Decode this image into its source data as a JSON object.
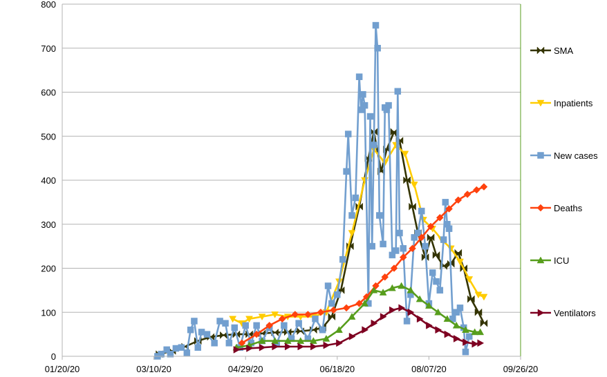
{
  "chart_data": {
    "type": "line",
    "title": "",
    "xlabel": "",
    "ylabel": "",
    "ylim": [
      0,
      800
    ],
    "yticks": [
      0,
      100,
      200,
      300,
      400,
      500,
      600,
      700,
      800
    ],
    "xlim": [
      "01/20/20",
      "09/26/20"
    ],
    "xticks": [
      "01/20/20",
      "03/10/20",
      "04/29/20",
      "06/18/20",
      "08/07/20",
      "09/26/20"
    ],
    "grid": "horizontal",
    "legend_position": "right",
    "series": [
      {
        "name": "SMA",
        "color": "#333300",
        "marker": "bowtie",
        "points": [
          [
            "03/13/20",
            5
          ],
          [
            "03/20/20",
            12
          ],
          [
            "03/27/20",
            22
          ],
          [
            "04/03/20",
            35
          ],
          [
            "04/10/20",
            44
          ],
          [
            "04/17/20",
            48
          ],
          [
            "04/24/20",
            50
          ],
          [
            "05/01/20",
            50
          ],
          [
            "05/08/20",
            52
          ],
          [
            "05/15/20",
            54
          ],
          [
            "05/22/20",
            55
          ],
          [
            "05/29/20",
            57
          ],
          [
            "06/05/20",
            60
          ],
          [
            "06/10/20",
            65
          ],
          [
            "06/15/20",
            90
          ],
          [
            "06/20/20",
            150
          ],
          [
            "06/25/20",
            250
          ],
          [
            "06/30/20",
            340
          ],
          [
            "07/05/20",
            450
          ],
          [
            "07/08/20",
            510
          ],
          [
            "07/12/20",
            420
          ],
          [
            "07/15/20",
            470
          ],
          [
            "07/19/20",
            510
          ],
          [
            "07/22/20",
            490
          ],
          [
            "07/26/20",
            400
          ],
          [
            "07/29/20",
            340
          ],
          [
            "08/01/20",
            280
          ],
          [
            "08/05/20",
            225
          ],
          [
            "08/08/20",
            270
          ],
          [
            "08/11/20",
            230
          ],
          [
            "08/15/20",
            205
          ],
          [
            "08/19/20",
            210
          ],
          [
            "08/23/20",
            235
          ],
          [
            "08/26/20",
            200
          ],
          [
            "08/30/20",
            130
          ],
          [
            "09/03/20",
            100
          ],
          [
            "09/06/20",
            75
          ]
        ]
      },
      {
        "name": "Inpatients",
        "color": "#ffcc00",
        "marker": "triangle-down",
        "points": [
          [
            "04/22/20",
            85
          ],
          [
            "04/27/20",
            75
          ],
          [
            "05/01/20",
            85
          ],
          [
            "05/08/20",
            90
          ],
          [
            "05/15/20",
            95
          ],
          [
            "05/22/20",
            90
          ],
          [
            "05/29/20",
            90
          ],
          [
            "06/05/20",
            90
          ],
          [
            "06/12/20",
            100
          ],
          [
            "06/19/20",
            170
          ],
          [
            "06/26/20",
            280
          ],
          [
            "07/03/20",
            400
          ],
          [
            "07/08/20",
            470
          ],
          [
            "07/14/20",
            440
          ],
          [
            "07/20/20",
            480
          ],
          [
            "07/25/20",
            460
          ],
          [
            "07/30/20",
            390
          ],
          [
            "08/04/20",
            310
          ],
          [
            "08/09/20",
            290
          ],
          [
            "08/14/20",
            265
          ],
          [
            "08/19/20",
            245
          ],
          [
            "08/24/20",
            215
          ],
          [
            "08/29/20",
            175
          ],
          [
            "09/03/20",
            140
          ],
          [
            "09/06/20",
            135
          ]
        ]
      },
      {
        "name": "New cases",
        "color": "#729fcf",
        "marker": "square",
        "points": [
          [
            "03/12/20",
            0
          ],
          [
            "03/14/20",
            5
          ],
          [
            "03/17/20",
            15
          ],
          [
            "03/19/20",
            5
          ],
          [
            "03/22/20",
            18
          ],
          [
            "03/25/20",
            20
          ],
          [
            "03/28/20",
            8
          ],
          [
            "03/30/20",
            60
          ],
          [
            "04/01/20",
            80
          ],
          [
            "04/03/20",
            20
          ],
          [
            "04/05/20",
            55
          ],
          [
            "04/08/20",
            50
          ],
          [
            "04/12/20",
            30
          ],
          [
            "04/15/20",
            80
          ],
          [
            "04/18/20",
            75
          ],
          [
            "04/20/20",
            30
          ],
          [
            "04/23/20",
            65
          ],
          [
            "04/26/20",
            20
          ],
          [
            "04/29/20",
            70
          ],
          [
            "05/02/20",
            30
          ],
          [
            "05/05/20",
            70
          ],
          [
            "05/08/20",
            35
          ],
          [
            "05/12/20",
            65
          ],
          [
            "05/16/20",
            30
          ],
          [
            "05/20/20",
            70
          ],
          [
            "05/24/20",
            40
          ],
          [
            "05/28/20",
            75
          ],
          [
            "06/02/20",
            40
          ],
          [
            "06/06/20",
            85
          ],
          [
            "06/10/20",
            60
          ],
          [
            "06/13/20",
            160
          ],
          [
            "06/15/20",
            120
          ],
          [
            "06/18/20",
            140
          ],
          [
            "06/21/20",
            220
          ],
          [
            "06/23/20",
            420
          ],
          [
            "06/24/20",
            505
          ],
          [
            "06/26/20",
            320
          ],
          [
            "06/28/20",
            360
          ],
          [
            "06/30/20",
            635
          ],
          [
            "07/01/20",
            560
          ],
          [
            "07/02/20",
            595
          ],
          [
            "07/03/20",
            570
          ],
          [
            "07/05/20",
            120
          ],
          [
            "07/06/20",
            545
          ],
          [
            "07/07/20",
            250
          ],
          [
            "07/08/20",
            480
          ],
          [
            "07/09/20",
            752
          ],
          [
            "07/10/20",
            700
          ],
          [
            "07/11/20",
            320
          ],
          [
            "07/13/20",
            255
          ],
          [
            "07/14/20",
            565
          ],
          [
            "07/15/20",
            560
          ],
          [
            "07/16/20",
            570
          ],
          [
            "07/18/20",
            230
          ],
          [
            "07/20/20",
            240
          ],
          [
            "07/21/20",
            602
          ],
          [
            "07/22/20",
            280
          ],
          [
            "07/24/20",
            245
          ],
          [
            "07/26/20",
            80
          ],
          [
            "07/28/20",
            140
          ],
          [
            "07/30/20",
            270
          ],
          [
            "08/01/20",
            280
          ],
          [
            "08/03/20",
            330
          ],
          [
            "08/05/20",
            250
          ],
          [
            "08/07/20",
            120
          ],
          [
            "08/09/20",
            190
          ],
          [
            "08/11/20",
            170
          ],
          [
            "08/13/20",
            150
          ],
          [
            "08/15/20",
            265
          ],
          [
            "08/16/20",
            350
          ],
          [
            "08/17/20",
            300
          ],
          [
            "08/18/20",
            290
          ],
          [
            "08/20/20",
            85
          ],
          [
            "08/22/20",
            100
          ],
          [
            "08/24/20",
            110
          ],
          [
            "08/26/20",
            65
          ],
          [
            "08/27/20",
            10
          ],
          [
            "08/29/20",
            45
          ]
        ]
      },
      {
        "name": "Deaths",
        "color": "#ff420e",
        "marker": "diamond",
        "points": [
          [
            "04/27/20",
            30
          ],
          [
            "05/05/20",
            50
          ],
          [
            "05/12/20",
            70
          ],
          [
            "05/19/20",
            85
          ],
          [
            "05/26/20",
            95
          ],
          [
            "06/02/20",
            95
          ],
          [
            "06/09/20",
            100
          ],
          [
            "06/16/20",
            105
          ],
          [
            "06/23/20",
            110
          ],
          [
            "06/30/20",
            120
          ],
          [
            "07/04/20",
            135
          ],
          [
            "07/09/20",
            160
          ],
          [
            "07/14/20",
            180
          ],
          [
            "07/19/20",
            200
          ],
          [
            "07/24/20",
            225
          ],
          [
            "07/29/20",
            245
          ],
          [
            "08/03/20",
            270
          ],
          [
            "08/08/20",
            295
          ],
          [
            "08/13/20",
            315
          ],
          [
            "08/18/20",
            335
          ],
          [
            "08/23/20",
            355
          ],
          [
            "08/28/20",
            368
          ],
          [
            "09/02/20",
            378
          ],
          [
            "09/06/20",
            385
          ]
        ]
      },
      {
        "name": "ICU",
        "color": "#579d1c",
        "marker": "triangle-up",
        "points": [
          [
            "04/24/20",
            20
          ],
          [
            "05/01/20",
            25
          ],
          [
            "05/08/20",
            35
          ],
          [
            "05/15/20",
            35
          ],
          [
            "05/22/20",
            35
          ],
          [
            "05/29/20",
            35
          ],
          [
            "06/05/20",
            35
          ],
          [
            "06/12/20",
            40
          ],
          [
            "06/19/20",
            60
          ],
          [
            "06/26/20",
            90
          ],
          [
            "07/03/20",
            120
          ],
          [
            "07/08/20",
            150
          ],
          [
            "07/13/20",
            145
          ],
          [
            "07/18/20",
            155
          ],
          [
            "07/23/20",
            160
          ],
          [
            "07/28/20",
            150
          ],
          [
            "08/02/20",
            130
          ],
          [
            "08/07/20",
            115
          ],
          [
            "08/12/20",
            100
          ],
          [
            "08/17/20",
            85
          ],
          [
            "08/22/20",
            70
          ],
          [
            "08/27/20",
            60
          ],
          [
            "09/01/20",
            55
          ],
          [
            "09/04/20",
            55
          ]
        ]
      },
      {
        "name": "Ventilators",
        "color": "#7e0021",
        "marker": "triangle-right",
        "points": [
          [
            "04/24/20",
            15
          ],
          [
            "05/01/20",
            18
          ],
          [
            "05/08/20",
            20
          ],
          [
            "05/15/20",
            22
          ],
          [
            "05/22/20",
            22
          ],
          [
            "05/29/20",
            22
          ],
          [
            "06/05/20",
            22
          ],
          [
            "06/12/20",
            25
          ],
          [
            "06/19/20",
            30
          ],
          [
            "06/26/20",
            45
          ],
          [
            "07/03/20",
            60
          ],
          [
            "07/08/20",
            75
          ],
          [
            "07/13/20",
            90
          ],
          [
            "07/18/20",
            105
          ],
          [
            "07/23/20",
            110
          ],
          [
            "07/28/20",
            100
          ],
          [
            "08/02/20",
            85
          ],
          [
            "08/07/20",
            70
          ],
          [
            "08/12/20",
            60
          ],
          [
            "08/17/20",
            50
          ],
          [
            "08/22/20",
            40
          ],
          [
            "08/27/20",
            32
          ],
          [
            "09/01/20",
            28
          ],
          [
            "09/04/20",
            30
          ]
        ]
      }
    ]
  }
}
